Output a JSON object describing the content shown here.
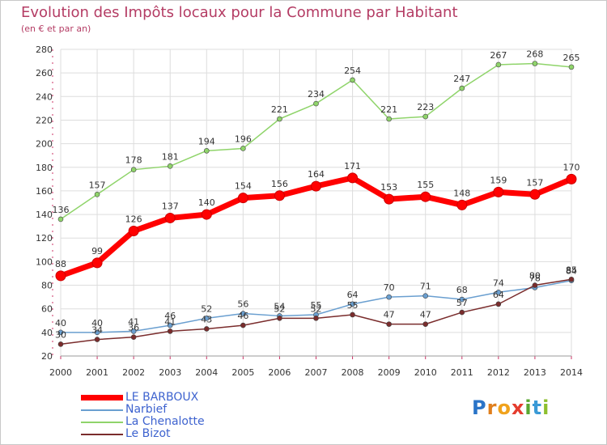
{
  "header": {
    "title": "Evolution des Impôts locaux pour la Commune par Habitant",
    "subtitle": "(en € et par an)"
  },
  "logo": {
    "letters": [
      "P",
      "r",
      "o",
      "x",
      "i",
      "t",
      "i"
    ],
    "colors": [
      "#2a74c8",
      "#e07f1d",
      "#f0a21c",
      "#e53c2e",
      "#5aa832",
      "#3a9ad6",
      "#8dbf2e"
    ]
  },
  "colors": {
    "background": "#ffffff",
    "grid": "#dddddd",
    "title": "#b43c64",
    "legend_text": "#3e63cf"
  },
  "chart_data": {
    "type": "line",
    "x": [
      "2000",
      "2001",
      "2002",
      "2003",
      "2004",
      "2005",
      "2006",
      "2007",
      "2008",
      "2009",
      "2010",
      "2011",
      "2012",
      "2013",
      "2014"
    ],
    "ylim": [
      20,
      280
    ],
    "yticks": [
      20,
      40,
      60,
      80,
      100,
      120,
      140,
      160,
      180,
      200,
      220,
      240,
      260,
      280
    ],
    "grid": true,
    "legend_position": "bottom-left",
    "series": [
      {
        "name": "LE BARBOUX",
        "color": "#ff0000",
        "values": [
          88,
          99,
          126,
          137,
          140,
          154,
          156,
          164,
          171,
          153,
          155,
          148,
          159,
          157,
          170
        ],
        "labels": [
          "88",
          "99",
          "126",
          "137",
          "140",
          "154",
          "156",
          "164",
          "171",
          "153",
          "155",
          "148",
          "159",
          "157",
          "170"
        ]
      },
      {
        "name": "Narbief",
        "color": "#6a9fd0",
        "values": [
          40,
          40,
          41,
          46,
          52,
          56,
          54,
          55,
          64,
          70,
          71,
          68,
          74,
          78,
          84
        ],
        "labels": [
          "40",
          "40",
          "41",
          "46",
          "52",
          "56",
          "54",
          "55",
          "64",
          "70",
          "71",
          "68",
          "74",
          "78",
          "84"
        ]
      },
      {
        "name": "La Chenalotte",
        "color": "#8fd46a",
        "values": [
          136,
          157,
          178,
          181,
          194,
          196,
          221,
          234,
          254,
          221,
          223,
          247,
          267,
          268,
          265
        ],
        "labels": [
          "136",
          "157",
          "178",
          "181",
          "194",
          "196",
          "221",
          "234",
          "254",
          "221",
          "223",
          "247",
          "267",
          "268",
          "265"
        ]
      },
      {
        "name": "Le Bizot",
        "color": "#7a2c2c",
        "values": [
          30,
          34,
          36,
          41,
          43,
          46,
          52,
          52,
          55,
          47,
          47,
          57,
          64,
          80,
          85
        ],
        "labels": [
          "30",
          "34",
          "36",
          "41",
          "43",
          "46",
          "52",
          "52",
          "55",
          "47",
          "47",
          "57",
          "64",
          "80",
          "85"
        ]
      }
    ]
  }
}
